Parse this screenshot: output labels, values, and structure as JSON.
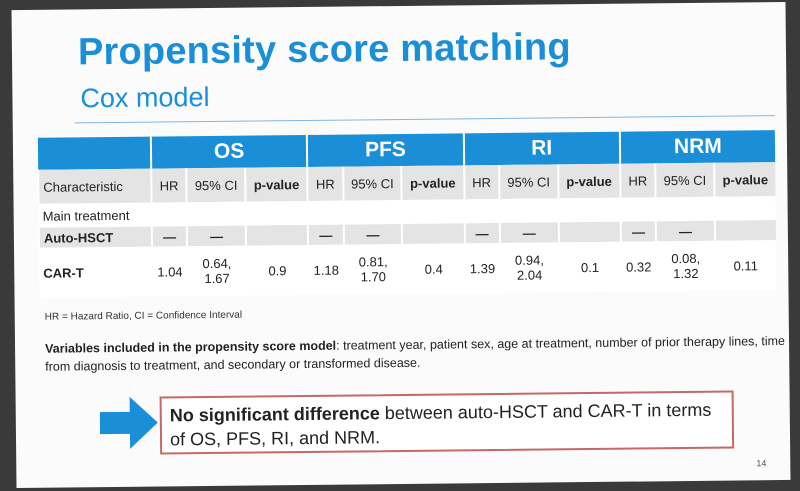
{
  "slide": {
    "title": "Propensity score matching",
    "subtitle": "Cox model",
    "page_number": "14"
  },
  "table": {
    "groups": [
      "OS",
      "PFS",
      "RI",
      "NRM"
    ],
    "characteristic_label": "Characteristic",
    "col_labels": {
      "hr": "HR",
      "ci": "95% CI",
      "p": "p-value"
    },
    "section_label": "Main treatment",
    "rows": [
      {
        "name": "Auto-HSCT",
        "values": [
          "—",
          "—",
          "",
          "—",
          "—",
          "",
          "—",
          "—",
          "",
          "—",
          "—",
          ""
        ]
      },
      {
        "name": "CAR-T",
        "values": [
          "1.04",
          "0.64,\n1.67",
          "0.9",
          "1.18",
          "0.81,\n1.70",
          "0.4",
          "1.39",
          "0.94,\n2.04",
          "0.1",
          "0.32",
          "0.08,\n1.32",
          "0.11"
        ]
      }
    ]
  },
  "footnote": "HR = Hazard Ratio, CI = Confidence Interval",
  "variables": {
    "label": "Variables included in the propensity score model",
    "text": ": treatment year, patient sex, age at treatment, number of prior therapy lines, time from diagnosis to treatment, and secondary or transformed disease."
  },
  "conclusion": {
    "bold": "No significant difference",
    "text": " between auto-HSCT and CAR-T in terms of OS, PFS, RI, and NRM."
  },
  "colors": {
    "accent": "#1a8fd8",
    "box_border": "#c46a63"
  }
}
